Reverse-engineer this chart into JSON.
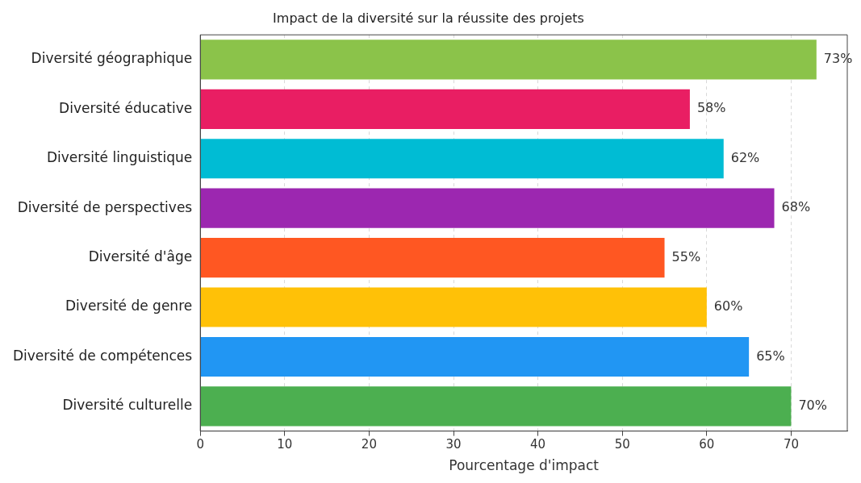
{
  "chart_data": {
    "type": "bar",
    "orientation": "horizontal",
    "title": "Impact de la diversité sur la réussite des projets",
    "xlabel": "Pourcentage d'impact",
    "categories": [
      "Diversité géographique",
      "Diversité éducative",
      "Diversité linguistique",
      "Diversité de perspectives",
      "Diversité d'âge",
      "Diversité de genre",
      "Diversité de compétences",
      "Diversité culturelle"
    ],
    "values": [
      73,
      58,
      62,
      68,
      55,
      60,
      65,
      70
    ],
    "colors": [
      "#8bc34a",
      "#e91e63",
      "#00bcd4",
      "#9c27b0",
      "#ff5722",
      "#ffc107",
      "#2196f3",
      "#4caf50"
    ],
    "value_labels": [
      "73%",
      "58%",
      "62%",
      "68%",
      "55%",
      "60%",
      "65%",
      "70%"
    ],
    "xlim": [
      0,
      76.65
    ],
    "xticks": [
      0,
      10,
      20,
      30,
      40,
      50,
      60,
      70
    ],
    "grid": "x",
    "legend": false
  }
}
